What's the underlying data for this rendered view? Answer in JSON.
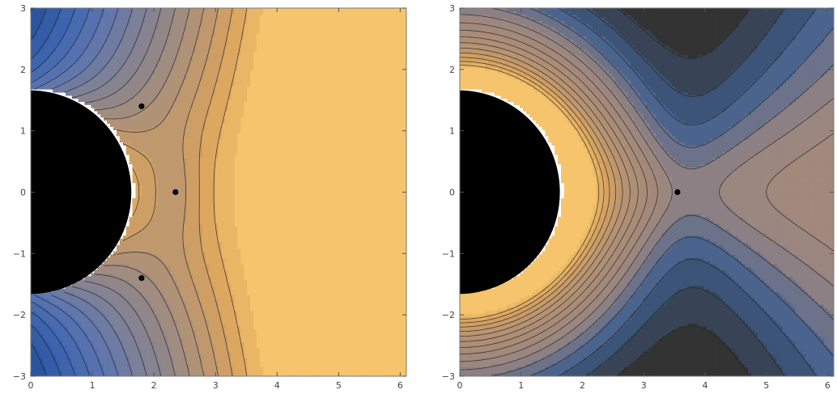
{
  "chart_data": [
    {
      "type": "contour",
      "panel": "left",
      "x_ticks": [
        "0",
        "1",
        "2",
        "3",
        "4",
        "5",
        "6"
      ],
      "y_ticks": [
        "−3",
        "−2",
        "−1",
        "0",
        "1",
        "2",
        "3"
      ],
      "x_tick_values": [
        0,
        1,
        2,
        3,
        4,
        5,
        6
      ],
      "y_tick_values": [
        -3,
        -2,
        -1,
        0,
        1,
        2,
        3
      ],
      "xlim": [
        0,
        6.1
      ],
      "ylim": [
        -3,
        3
      ],
      "horizon_radius": 1.66,
      "horizon_color": "#000000",
      "colormap": [
        "#f6c46d",
        "#d9a35e",
        "#b79473",
        "#948787",
        "#7a7f9a",
        "#5d75b0",
        "#4066b0",
        "#2a55a0"
      ],
      "critical_points": [
        {
          "x": 1.8,
          "y": 1.4
        },
        {
          "x": 1.8,
          "y": -1.4
        },
        {
          "x": 2.35,
          "y": 0
        }
      ]
    },
    {
      "type": "contour",
      "panel": "right",
      "x_ticks": [
        "0",
        "1",
        "2",
        "3",
        "4",
        "5",
        "6"
      ],
      "y_ticks": [
        "−3",
        "−2",
        "−1",
        "0",
        "1",
        "2",
        "3"
      ],
      "x_tick_values": [
        0,
        1,
        2,
        3,
        4,
        5,
        6
      ],
      "y_tick_values": [
        -3,
        -2,
        -1,
        0,
        1,
        2,
        3
      ],
      "xlim": [
        0,
        6.1
      ],
      "ylim": [
        -3,
        3
      ],
      "horizon_radius": 1.66,
      "horizon_color": "#000000",
      "colormap": [
        "#f6c46d",
        "#d9a35e",
        "#b89471",
        "#a88c77",
        "#978582",
        "#3f5f8f",
        "#333333"
      ],
      "critical_points": [
        {
          "x": 3.55,
          "y": 0
        }
      ]
    }
  ]
}
